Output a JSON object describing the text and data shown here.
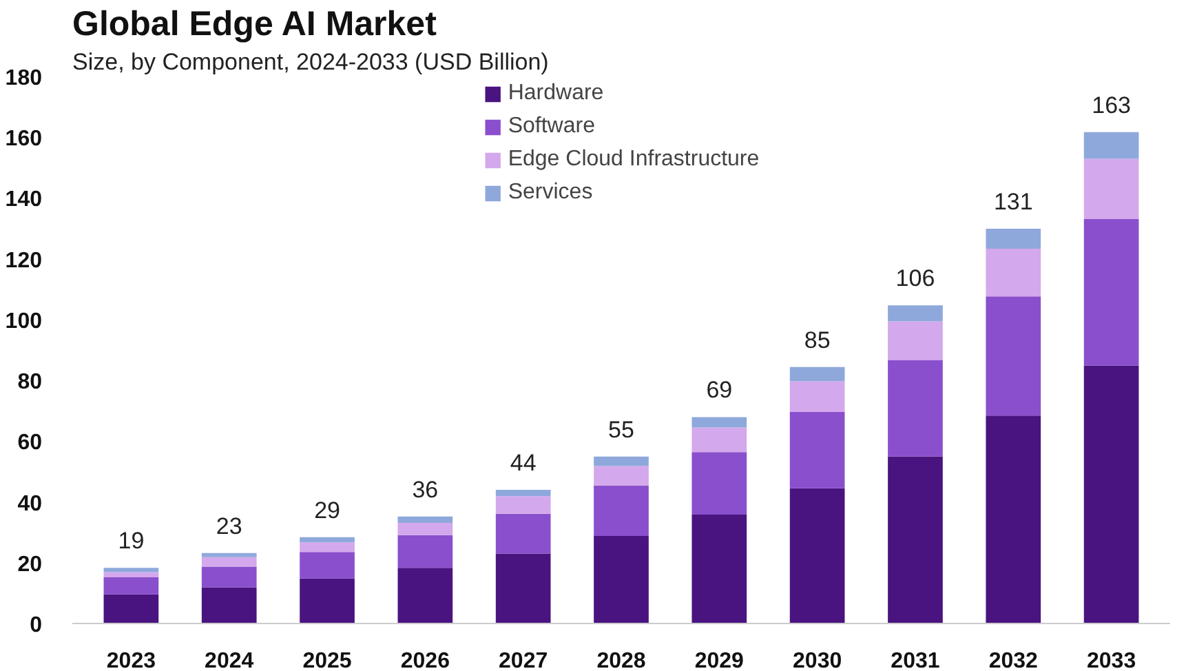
{
  "chart_data": {
    "type": "bar",
    "stacked": true,
    "title": "Global Edge AI Market",
    "subtitle": "Size, by Component, 2024-2033 (USD Billion)",
    "categories": [
      "2023",
      "2024",
      "2025",
      "2026",
      "2027",
      "2028",
      "2029",
      "2030",
      "2031",
      "2032",
      "2033"
    ],
    "series": [
      {
        "name": "Hardware",
        "color": "#4a1480",
        "values": [
          9.6,
          11.9,
          14.8,
          18.3,
          23.0,
          28.8,
          35.8,
          44.5,
          55.0,
          68.4,
          84.9
        ]
      },
      {
        "name": "Software",
        "color": "#8a4fcc",
        "values": [
          5.6,
          6.8,
          8.7,
          10.8,
          13.1,
          16.6,
          20.6,
          25.1,
          31.7,
          39.2,
          48.2
        ]
      },
      {
        "name": "Edge Cloud Infrastructure",
        "color": "#d4a8ec",
        "values": [
          1.7,
          3.1,
          3.2,
          4.0,
          5.8,
          6.4,
          8.1,
          10.1,
          12.7,
          15.7,
          19.8
        ]
      },
      {
        "name": "Services",
        "color": "#8fa8dc",
        "values": [
          1.4,
          1.4,
          1.7,
          2.1,
          2.1,
          3.1,
          3.4,
          4.7,
          5.3,
          6.6,
          8.8
        ]
      }
    ],
    "totals": [
      "19",
      "23",
      "29",
      "36",
      "44",
      "55",
      "69",
      "85",
      "106",
      "131",
      "163"
    ],
    "ylim": [
      0,
      180
    ],
    "yticks": [
      0,
      20,
      40,
      60,
      80,
      100,
      120,
      140,
      160,
      180
    ],
    "grid": false,
    "legend": "top"
  }
}
